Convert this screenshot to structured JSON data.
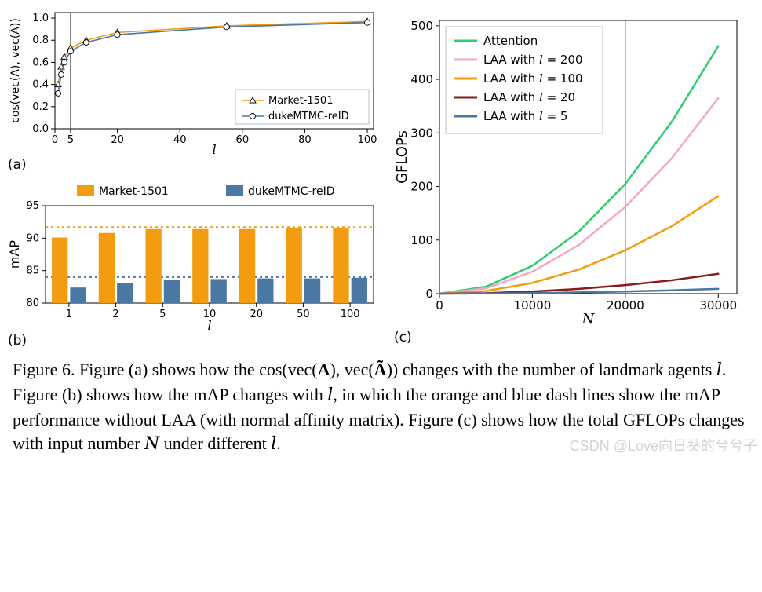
{
  "colors": {
    "orange": "#f39c12",
    "blue_mpl": "#4a78a3",
    "green": "#2ecc71",
    "pink": "#f5a6c6",
    "darkred": "#8b1a1a",
    "steelblue": "#4a78a3",
    "grid": "#bfbfbf",
    "bg": "#ffffff"
  },
  "panelA": {
    "label": "(a)",
    "xlabel_italic": "l",
    "ylabel": "cos(vec(A), vec(Ã))",
    "xlim": [
      0,
      102
    ],
    "ylim": [
      0,
      1.05
    ],
    "xticks": [
      0,
      5,
      20,
      40,
      60,
      80,
      100
    ],
    "yticks": [
      0.0,
      0.2,
      0.4,
      0.6,
      0.8,
      1.0
    ],
    "xtick_labels": [
      "0",
      "5",
      "20",
      "40",
      "60",
      "80",
      "100"
    ],
    "ytick_labels": [
      "0.0",
      "0.2",
      "0.4",
      "0.6",
      "0.8",
      "1.0"
    ],
    "vlines": [
      5
    ],
    "series": [
      {
        "name": "Market-1501",
        "color_key": "orange",
        "marker": "triangle",
        "x": [
          1,
          2,
          3,
          5,
          10,
          20,
          55,
          100
        ],
        "y": [
          0.4,
          0.56,
          0.65,
          0.73,
          0.8,
          0.87,
          0.93,
          0.97
        ]
      },
      {
        "name": "dukeMTMC-reID",
        "color_key": "blue_mpl",
        "marker": "circle",
        "x": [
          1,
          2,
          3,
          5,
          10,
          20,
          55,
          100
        ],
        "y": [
          0.32,
          0.49,
          0.6,
          0.7,
          0.78,
          0.85,
          0.92,
          0.96
        ]
      }
    ],
    "legend_pos": "lower-right",
    "legend_items": [
      "Market-1501",
      "dukeMTMC-reID"
    ],
    "tick_fontsize": 13,
    "label_fontsize": 16
  },
  "panelB": {
    "label": "(b)",
    "xlabel_italic": "l",
    "ylabel": "mAP",
    "categories": [
      "1",
      "2",
      "5",
      "10",
      "20",
      "50",
      "100"
    ],
    "ylim": [
      80,
      95
    ],
    "yticks": [
      80,
      85,
      90,
      95
    ],
    "ytick_labels": [
      "80",
      "85",
      "90",
      "95"
    ],
    "series": [
      {
        "name": "Market-1501",
        "color_key": "orange",
        "values": [
          90.1,
          90.8,
          91.4,
          91.4,
          91.4,
          91.5,
          91.5
        ]
      },
      {
        "name": "dukeMTMC-reID",
        "color_key": "blue_mpl",
        "values": [
          82.4,
          83.1,
          83.6,
          83.7,
          83.8,
          83.8,
          83.9
        ]
      }
    ],
    "dash_lines": [
      {
        "color_key": "orange",
        "y": 91.7
      },
      {
        "color_key": "blue_mpl",
        "y": 84.0
      }
    ],
    "bar_width": 0.34,
    "tick_fontsize": 13,
    "label_fontsize": 16,
    "legend_items": [
      "Market-1501",
      "dukeMTMC-reID"
    ]
  },
  "panelC": {
    "label": "(c)",
    "xlabel": "N",
    "ylabel": "GFLOPs",
    "xlim": [
      0,
      32000
    ],
    "ylim": [
      0,
      510
    ],
    "xticks": [
      0,
      10000,
      20000,
      30000
    ],
    "xtick_labels": [
      "0",
      "10000",
      "20000",
      "30000"
    ],
    "yticks": [
      0,
      100,
      200,
      300,
      400,
      500
    ],
    "ytick_labels": [
      "0",
      "100",
      "200",
      "300",
      "400",
      "500"
    ],
    "vlines": [
      20000
    ],
    "series": [
      {
        "name": "Attention",
        "color_key": "green",
        "x": [
          0,
          5000,
          10000,
          15000,
          20000,
          25000,
          30000
        ],
        "y": [
          0,
          13,
          52,
          116,
          205,
          321,
          462
        ],
        "lw": 2.5
      },
      {
        "name": "LAA with l = 200",
        "color_key": "pink",
        "x": [
          0,
          5000,
          10000,
          15000,
          20000,
          25000,
          30000
        ],
        "y": [
          0,
          10,
          41,
          91,
          162,
          253,
          365
        ],
        "lw": 2.5
      },
      {
        "name": "LAA with l = 100",
        "color_key": "orange",
        "x": [
          0,
          5000,
          10000,
          15000,
          20000,
          25000,
          30000
        ],
        "y": [
          0,
          5,
          20,
          45,
          81,
          126,
          182
        ],
        "lw": 2.5
      },
      {
        "name": "LAA with l = 20",
        "color_key": "darkred",
        "x": [
          0,
          5000,
          10000,
          15000,
          20000,
          25000,
          30000
        ],
        "y": [
          0,
          1,
          4,
          9,
          16,
          25,
          37
        ],
        "lw": 2.5
      },
      {
        "name": "LAA with l = 5",
        "color_key": "steelblue",
        "x": [
          0,
          5000,
          10000,
          15000,
          20000,
          25000,
          30000
        ],
        "y": [
          0,
          0.3,
          1,
          2.3,
          4,
          6.3,
          9
        ],
        "lw": 2.5
      }
    ],
    "legend_pos": "upper-left",
    "legend_items_raw": [
      "Attention",
      "LAA with l = 200",
      "LAA with l = 100",
      "LAA with l = 20",
      "LAA with l = 5"
    ],
    "tick_fontsize": 15,
    "label_fontsize": 18
  },
  "caption": {
    "prefix": "Figure 6. ",
    "body_parts": [
      "Figure (a) shows how the cos(vec(",
      "A",
      "), vec(",
      "Ã",
      ")) changes with the number of landmark agents ",
      "l",
      ". Figure (b) shows how the mAP changes with ",
      "l",
      ", in which the orange and blue dash lines show the mAP performance without LAA (with normal affinity matrix). Figure (c) shows how the total GFLOPs changes with input number ",
      "N",
      " under different ",
      "l",
      "."
    ]
  },
  "watermark": "CSDN @Love向日葵的兮兮子"
}
